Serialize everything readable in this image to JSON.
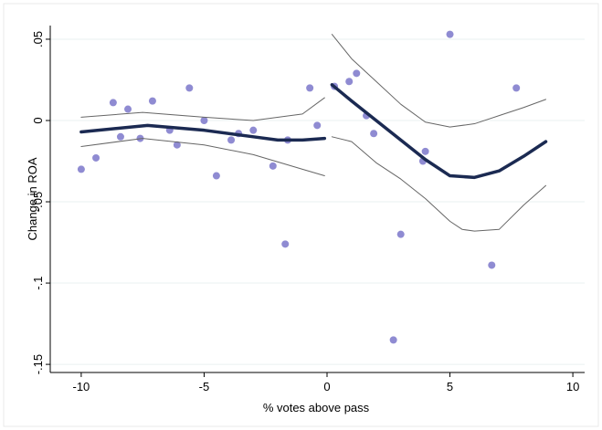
{
  "chart_data": {
    "type": "scatter",
    "x_label": "% votes above pass",
    "y_label": "Change in ROA",
    "xlim": [
      -11.26,
      10.48
    ],
    "ylim": [
      -0.155,
      0.0584
    ],
    "xticks": [
      -10,
      -5,
      0,
      5,
      10
    ],
    "yticks": [
      {
        "value": 0.05,
        "label": ".05"
      },
      0,
      {
        "value": -0.05,
        "label": "-.05"
      },
      {
        "value": -0.1,
        "label": "-.1"
      },
      {
        "value": -0.15,
        "label": "-.15"
      }
    ],
    "grid": true,
    "series": [
      {
        "type": "scatter",
        "color": "#8f8bd2",
        "x": [
          -10,
          -9.4,
          -8.7,
          -8.4,
          -8.1,
          -7.6,
          -7.1,
          -6.4,
          -6.1,
          -5.6,
          -5.0,
          -4.5,
          -3.9,
          -3.6,
          -3.0,
          -2.2,
          -1.7,
          -1.6,
          -0.7,
          -0.4,
          0.3,
          0.9,
          1.2,
          1.6,
          1.9,
          2.7,
          3.0,
          3.9,
          4.0,
          5.0,
          6.7,
          7.7
        ],
        "values": [
          -0.03,
          -0.023,
          0.011,
          -0.01,
          0.007,
          -0.011,
          0.012,
          -0.006,
          -0.015,
          0.02,
          0.0,
          -0.034,
          -0.012,
          -0.008,
          -0.006,
          -0.028,
          -0.076,
          -0.012,
          0.02,
          -0.003,
          0.021,
          0.024,
          0.029,
          0.003,
          -0.008,
          -0.135,
          -0.07,
          -0.025,
          -0.019,
          0.053,
          -0.089,
          0.02
        ]
      },
      {
        "type": "line",
        "color": "#1b2a52",
        "width": 3.5,
        "x": [
          -10,
          -7.3,
          -5,
          -3,
          -2,
          -1,
          -0.1
        ],
        "values": [
          -0.007,
          -0.003,
          -0.006,
          -0.01,
          -0.012,
          -0.012,
          -0.011
        ]
      },
      {
        "type": "line",
        "color": "#666666",
        "width": 1,
        "x": [
          -10,
          -7.5,
          -5,
          -3,
          -1,
          -0.1
        ],
        "values": [
          0.002,
          0.005,
          0.002,
          0.0,
          0.004,
          0.014
        ]
      },
      {
        "type": "line",
        "color": "#666666",
        "width": 1,
        "x": [
          -10,
          -7.5,
          -5,
          -3,
          -1,
          -0.1
        ],
        "values": [
          -0.016,
          -0.011,
          -0.015,
          -0.021,
          -0.03,
          -0.034
        ]
      },
      {
        "type": "line",
        "color": "#1b2a52",
        "width": 3.5,
        "x": [
          0.2,
          1,
          2,
          3,
          4,
          5,
          6,
          7,
          8,
          8.9
        ],
        "values": [
          0.022,
          0.012,
          0.0,
          -0.012,
          -0.024,
          -0.034,
          -0.035,
          -0.031,
          -0.022,
          -0.013
        ]
      },
      {
        "type": "line",
        "color": "#666666",
        "width": 1,
        "x": [
          0.2,
          1,
          2,
          3,
          4,
          5,
          6,
          7,
          8,
          8.9
        ],
        "values": [
          0.053,
          0.038,
          0.024,
          0.01,
          -0.001,
          -0.004,
          -0.002,
          0.003,
          0.008,
          0.013
        ]
      },
      {
        "type": "line",
        "color": "#666666",
        "width": 1,
        "x": [
          0.2,
          1,
          2,
          3,
          4,
          5,
          5.5,
          6,
          7,
          8,
          8.9
        ],
        "values": [
          -0.01,
          -0.013,
          -0.026,
          -0.036,
          -0.048,
          -0.062,
          -0.067,
          -0.068,
          -0.067,
          -0.052,
          -0.04
        ]
      }
    ]
  }
}
